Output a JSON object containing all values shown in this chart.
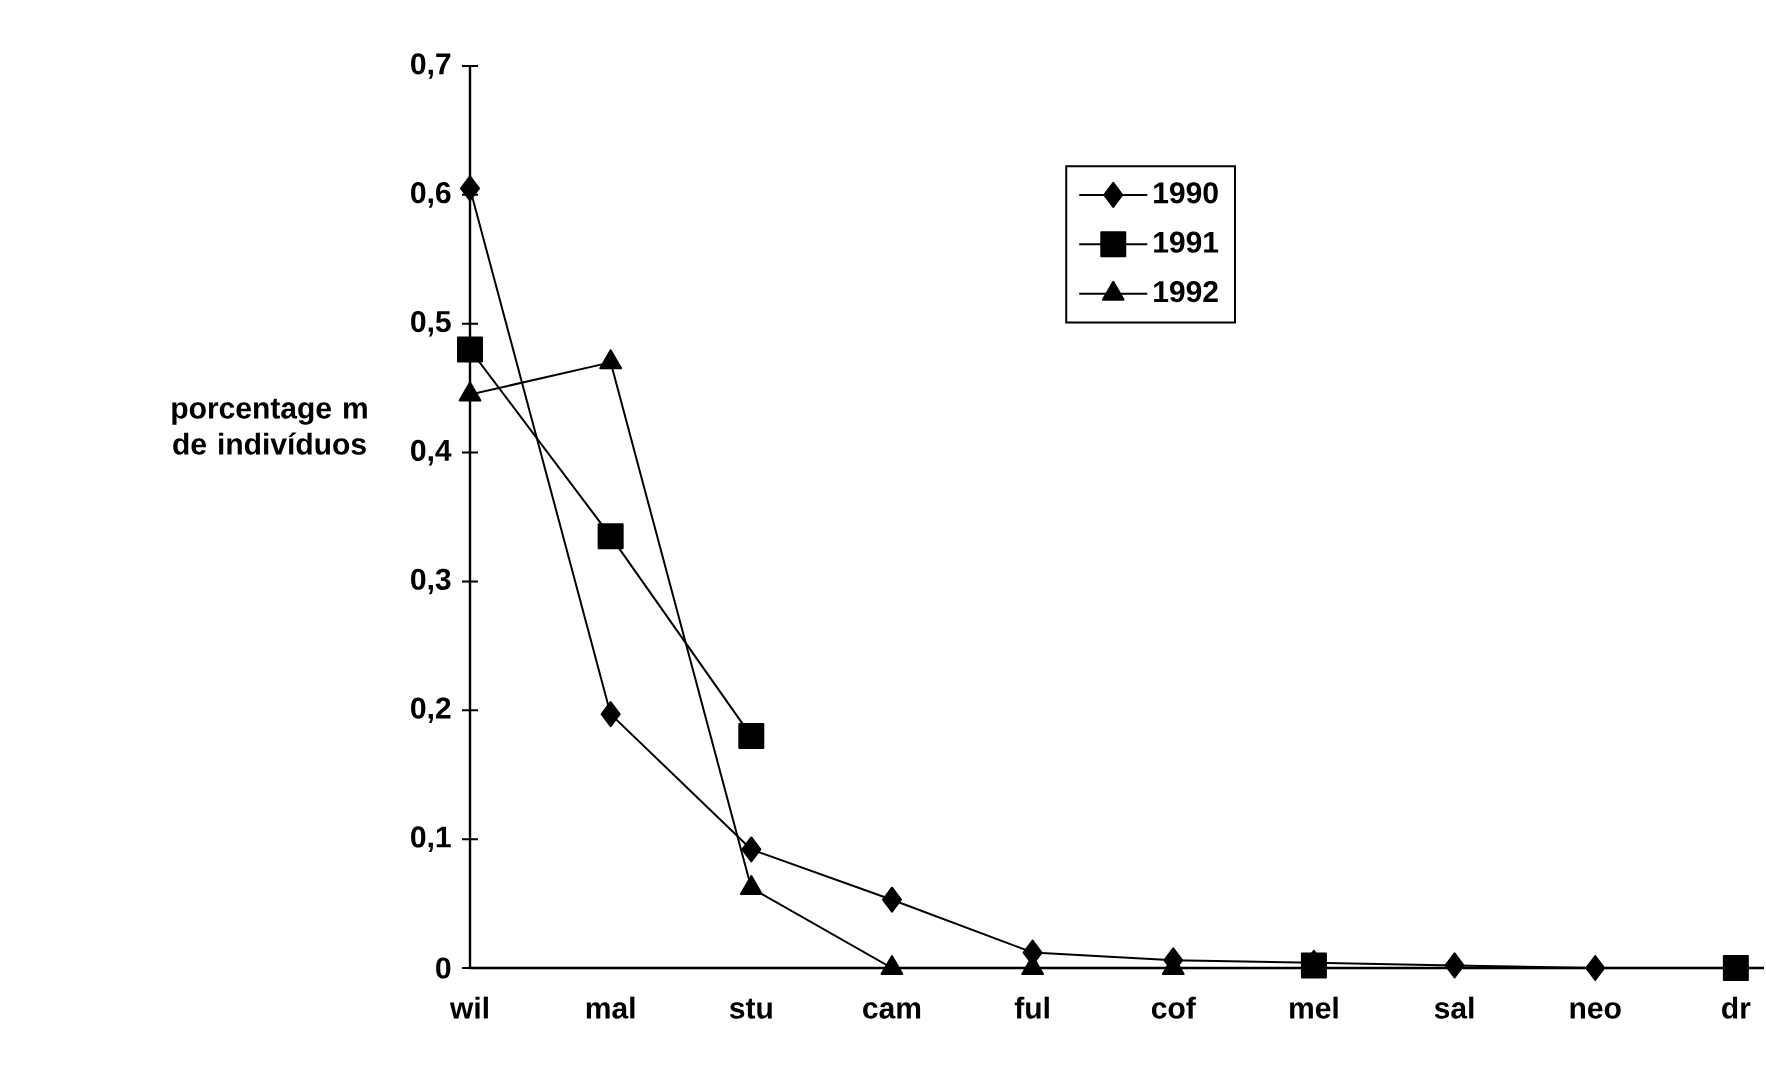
{
  "chart_data": {
    "type": "line",
    "ylabel": "porcentage m de indivíduos",
    "categories": [
      "wil",
      "mal",
      "stu",
      "cam",
      "ful",
      "cof",
      "mel",
      "sal",
      "neo",
      "dr"
    ],
    "series": [
      {
        "name": "1990",
        "color": "#000000",
        "marker": "diamond",
        "values": [
          0.605,
          0.197,
          0.092,
          0.053,
          0.012,
          0.006,
          0.004,
          0.002,
          0.0,
          null
        ]
      },
      {
        "name": "1991",
        "color": "#000000",
        "marker": "square",
        "values": [
          0.48,
          0.335,
          0.18,
          null,
          null,
          null,
          0.002,
          null,
          null,
          0.0
        ]
      },
      {
        "name": "1992",
        "color": "#000000",
        "marker": "triangle",
        "values": [
          0.445,
          0.47,
          0.062,
          0.0,
          0.0,
          0.0,
          null,
          null,
          null,
          null
        ]
      }
    ],
    "ylim": [
      0,
      0.7
    ],
    "yticks": [
      0,
      {
        "value": 0.1,
        "label": "0,1"
      },
      {
        "value": 0.2,
        "label": "0,2"
      },
      {
        "value": 0.3,
        "label": "0,3"
      },
      {
        "value": 0.4,
        "label": "0,4"
      },
      {
        "value": 0.5,
        "label": "0,5"
      },
      {
        "value": 0.6,
        "label": "0,6"
      },
      {
        "value": 0.7,
        "label": "0,7"
      }
    ],
    "grid": false,
    "legend": "top right",
    "line_style": "solid"
  }
}
